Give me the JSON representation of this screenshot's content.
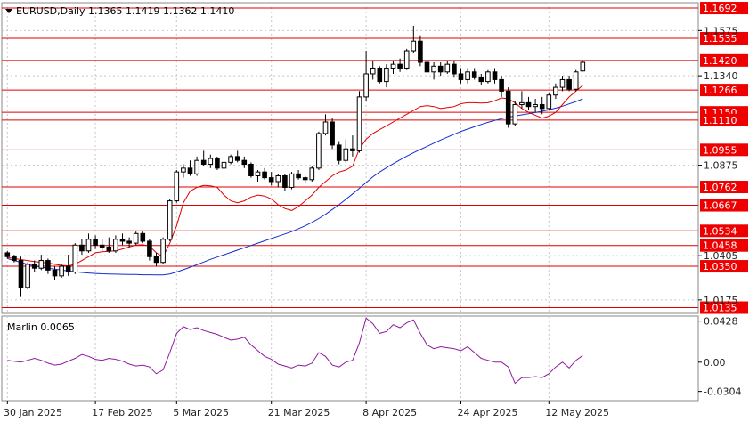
{
  "chart_data": {
    "type": "candlestick",
    "symbol_header": "EURUSD,Daily  1.1365 1.1419 1.1362 1.1410",
    "price_ticks": [
      "1.1575",
      "1.1340",
      "1.0875",
      "1.0405",
      "1.0175"
    ],
    "price_tick_values": [
      1.1575,
      1.134,
      1.0875,
      1.0405,
      1.0175
    ],
    "levels": [
      {
        "label": "1.1692",
        "value": 1.1692
      },
      {
        "label": "1.1535",
        "value": 1.1535
      },
      {
        "label": "1.1420",
        "value": 1.142
      },
      {
        "label": "1.1266",
        "value": 1.1266
      },
      {
        "label": "1.1150",
        "value": 1.115
      },
      {
        "label": "1.1110",
        "value": 1.111
      },
      {
        "label": "1.0955",
        "value": 1.0955
      },
      {
        "label": "1.0762",
        "value": 1.0762
      },
      {
        "label": "1.0667",
        "value": 1.0667
      },
      {
        "label": "1.0534",
        "value": 1.0534
      },
      {
        "label": "1.0458",
        "value": 1.0458
      },
      {
        "label": "1.0350",
        "value": 1.035
      },
      {
        "label": "1.0135",
        "value": 1.0135
      }
    ],
    "ylim": [
      1.0105,
      1.172
    ],
    "x_ticks": [
      "30 Jan 2025",
      "17 Feb 2025",
      "5 Mar 2025",
      "21 Mar 2025",
      "8 Apr 2025",
      "24 Apr 2025",
      "12 May 2025"
    ],
    "x_tick_index": [
      0,
      13,
      25,
      39,
      53,
      67,
      80
    ],
    "candles": [
      [
        1.042,
        1.043,
        1.039,
        1.04
      ],
      [
        1.04,
        1.041,
        1.037,
        1.038
      ],
      [
        1.038,
        1.04,
        1.019,
        1.024
      ],
      [
        1.024,
        1.037,
        1.023,
        1.036
      ],
      [
        1.036,
        1.038,
        1.032,
        1.034
      ],
      [
        1.034,
        1.041,
        1.033,
        1.038
      ],
      [
        1.038,
        1.039,
        1.031,
        1.033
      ],
      [
        1.033,
        1.035,
        1.028,
        1.03
      ],
      [
        1.03,
        1.036,
        1.029,
        1.035
      ],
      [
        1.035,
        1.041,
        1.03,
        1.032
      ],
      [
        1.032,
        1.047,
        1.031,
        1.046
      ],
      [
        1.046,
        1.049,
        1.041,
        1.043
      ],
      [
        1.043,
        1.052,
        1.042,
        1.049
      ],
      [
        1.049,
        1.051,
        1.044,
        1.046
      ],
      [
        1.046,
        1.049,
        1.043,
        1.045
      ],
      [
        1.045,
        1.05,
        1.042,
        1.043
      ],
      [
        1.043,
        1.051,
        1.042,
        1.049
      ],
      [
        1.049,
        1.052,
        1.046,
        1.048
      ],
      [
        1.048,
        1.05,
        1.045,
        1.047
      ],
      [
        1.047,
        1.053,
        1.046,
        1.052
      ],
      [
        1.052,
        1.053,
        1.047,
        1.048
      ],
      [
        1.048,
        1.049,
        1.038,
        1.04
      ],
      [
        1.04,
        1.042,
        1.035,
        1.037
      ],
      [
        1.037,
        1.05,
        1.036,
        1.049
      ],
      [
        1.049,
        1.07,
        1.048,
        1.069
      ],
      [
        1.069,
        1.085,
        1.068,
        1.084
      ],
      [
        1.084,
        1.088,
        1.081,
        1.086
      ],
      [
        1.086,
        1.09,
        1.082,
        1.083
      ],
      [
        1.083,
        1.092,
        1.082,
        1.09
      ],
      [
        1.09,
        1.095,
        1.087,
        1.088
      ],
      [
        1.088,
        1.093,
        1.086,
        1.091
      ],
      [
        1.091,
        1.092,
        1.085,
        1.086
      ],
      [
        1.086,
        1.09,
        1.084,
        1.089
      ],
      [
        1.089,
        1.093,
        1.088,
        1.092
      ],
      [
        1.092,
        1.095,
        1.089,
        1.09
      ],
      [
        1.09,
        1.092,
        1.086,
        1.088
      ],
      [
        1.088,
        1.089,
        1.081,
        1.082
      ],
      [
        1.082,
        1.085,
        1.079,
        1.084
      ],
      [
        1.084,
        1.086,
        1.08,
        1.081
      ],
      [
        1.081,
        1.084,
        1.077,
        1.079
      ],
      [
        1.079,
        1.083,
        1.076,
        1.082
      ],
      [
        1.082,
        1.083,
        1.074,
        1.076
      ],
      [
        1.076,
        1.084,
        1.075,
        1.083
      ],
      [
        1.083,
        1.085,
        1.08,
        1.081
      ],
      [
        1.081,
        1.082,
        1.078,
        1.08
      ],
      [
        1.08,
        1.087,
        1.079,
        1.086
      ],
      [
        1.086,
        1.105,
        1.085,
        1.104
      ],
      [
        1.104,
        1.114,
        1.103,
        1.11
      ],
      [
        1.11,
        1.112,
        1.096,
        1.098
      ],
      [
        1.098,
        1.1,
        1.088,
        1.09
      ],
      [
        1.09,
        1.101,
        1.089,
        1.096
      ],
      [
        1.096,
        1.103,
        1.092,
        1.095
      ],
      [
        1.095,
        1.126,
        1.094,
        1.123
      ],
      [
        1.123,
        1.147,
        1.121,
        1.135
      ],
      [
        1.135,
        1.142,
        1.132,
        1.138
      ],
      [
        1.138,
        1.139,
        1.13,
        1.131
      ],
      [
        1.131,
        1.14,
        1.128,
        1.138
      ],
      [
        1.138,
        1.142,
        1.135,
        1.14
      ],
      [
        1.14,
        1.143,
        1.136,
        1.138
      ],
      [
        1.138,
        1.148,
        1.137,
        1.147
      ],
      [
        1.147,
        1.16,
        1.146,
        1.152
      ],
      [
        1.152,
        1.155,
        1.139,
        1.141
      ],
      [
        1.141,
        1.143,
        1.133,
        1.136
      ],
      [
        1.136,
        1.141,
        1.132,
        1.139
      ],
      [
        1.139,
        1.141,
        1.134,
        1.136
      ],
      [
        1.136,
        1.142,
        1.135,
        1.14
      ],
      [
        1.14,
        1.142,
        1.133,
        1.135
      ],
      [
        1.135,
        1.138,
        1.13,
        1.132
      ],
      [
        1.132,
        1.138,
        1.13,
        1.136
      ],
      [
        1.136,
        1.138,
        1.132,
        1.133
      ],
      [
        1.133,
        1.135,
        1.129,
        1.131
      ],
      [
        1.131,
        1.137,
        1.13,
        1.136
      ],
      [
        1.136,
        1.138,
        1.13,
        1.132
      ],
      [
        1.132,
        1.134,
        1.123,
        1.126
      ],
      [
        1.126,
        1.128,
        1.107,
        1.109
      ],
      [
        1.109,
        1.121,
        1.108,
        1.119
      ],
      [
        1.119,
        1.126,
        1.117,
        1.12
      ],
      [
        1.12,
        1.123,
        1.116,
        1.118
      ],
      [
        1.118,
        1.122,
        1.115,
        1.119
      ],
      [
        1.119,
        1.123,
        1.114,
        1.117
      ],
      [
        1.117,
        1.125,
        1.116,
        1.124
      ],
      [
        1.124,
        1.13,
        1.122,
        1.128
      ],
      [
        1.128,
        1.134,
        1.126,
        1.132
      ],
      [
        1.132,
        1.134,
        1.126,
        1.127
      ],
      [
        1.127,
        1.137,
        1.126,
        1.136
      ],
      [
        1.1365,
        1.1419,
        1.1362,
        1.141
      ]
    ],
    "red_ma": [
      1.0395,
      1.039,
      1.0385,
      1.038,
      1.0375,
      1.037,
      1.0368,
      1.036,
      1.0355,
      1.0352,
      1.036,
      1.038,
      1.04,
      1.042,
      1.0425,
      1.0428,
      1.043,
      1.044,
      1.045,
      1.046,
      1.0462,
      1.0455,
      1.042,
      1.04,
      1.047,
      1.056,
      1.068,
      1.074,
      1.076,
      1.077,
      1.0768,
      1.076,
      1.072,
      1.069,
      1.068,
      1.069,
      1.071,
      1.072,
      1.0715,
      1.07,
      1.067,
      1.065,
      1.064,
      1.066,
      1.069,
      1.072,
      1.076,
      1.079,
      1.082,
      1.084,
      1.085,
      1.087,
      1.096,
      1.101,
      1.104,
      1.106,
      1.108,
      1.11,
      1.112,
      1.114,
      1.116,
      1.118,
      1.1185,
      1.118,
      1.117,
      1.1175,
      1.118,
      1.1195,
      1.12,
      1.12,
      1.1198,
      1.12,
      1.121,
      1.1225,
      1.122,
      1.12,
      1.117,
      1.115,
      1.1135,
      1.112,
      1.113,
      1.115,
      1.119,
      1.123,
      1.126,
      1.129
    ],
    "blue_ma": [
      1.039,
      1.038,
      1.037,
      1.036,
      1.0352,
      1.0345,
      1.034,
      1.0335,
      1.033,
      1.0326,
      1.0322,
      1.0318,
      1.0315,
      1.0313,
      1.0311,
      1.031,
      1.0309,
      1.0308,
      1.0307,
      1.0307,
      1.0306,
      1.0306,
      1.0305,
      1.0305,
      1.031,
      1.032,
      1.0332,
      1.0345,
      1.0358,
      1.0372,
      1.0386,
      1.0398,
      1.041,
      1.0422,
      1.0434,
      1.0446,
      1.0458,
      1.047,
      1.0482,
      1.0494,
      1.0506,
      1.0518,
      1.053,
      1.0545,
      1.056,
      1.0578,
      1.0598,
      1.062,
      1.0645,
      1.067,
      1.0698,
      1.0726,
      1.0755,
      1.0785,
      1.0815,
      1.084,
      1.0862,
      1.0883,
      1.0903,
      1.0922,
      1.094,
      1.0957,
      1.0973,
      1.099,
      1.1006,
      1.1021,
      1.1036,
      1.1051,
      1.1063,
      1.1075,
      1.1087,
      1.1098,
      1.1108,
      1.1117,
      1.1125,
      1.1131,
      1.1137,
      1.1143,
      1.1149,
      1.1156,
      1.1163,
      1.1172,
      1.1182,
      1.1194,
      1.1206,
      1.122
    ],
    "oscillator": {
      "label": "Marlin 0.0065",
      "ticks": [
        "0.0428",
        "0.00",
        "-0.0304"
      ],
      "tick_values": [
        0.0428,
        0.0,
        -0.0304
      ],
      "ylim": [
        -0.04,
        0.048
      ],
      "values": [
        0.002,
        0.001,
        0.0,
        0.002,
        0.004,
        0.002,
        -0.001,
        -0.003,
        -0.002,
        0.001,
        0.004,
        0.008,
        0.006,
        0.003,
        0.002,
        0.004,
        0.003,
        0.001,
        -0.002,
        -0.004,
        -0.003,
        -0.005,
        -0.012,
        -0.008,
        0.01,
        0.03,
        0.037,
        0.034,
        0.036,
        0.033,
        0.031,
        0.029,
        0.026,
        0.023,
        0.024,
        0.026,
        0.018,
        0.012,
        0.006,
        0.003,
        -0.002,
        -0.004,
        -0.006,
        -0.003,
        -0.004,
        -0.001,
        0.01,
        0.006,
        -0.003,
        -0.005,
        0.0,
        0.002,
        0.02,
        0.046,
        0.04,
        0.03,
        0.032,
        0.039,
        0.036,
        0.041,
        0.044,
        0.03,
        0.018,
        0.014,
        0.016,
        0.015,
        0.014,
        0.012,
        0.016,
        0.01,
        0.004,
        0.002,
        0.0,
        0.0,
        -0.005,
        -0.022,
        -0.016,
        -0.016,
        -0.015,
        -0.016,
        -0.012,
        -0.005,
        0.0,
        -0.006,
        0.002,
        0.007
      ]
    }
  }
}
